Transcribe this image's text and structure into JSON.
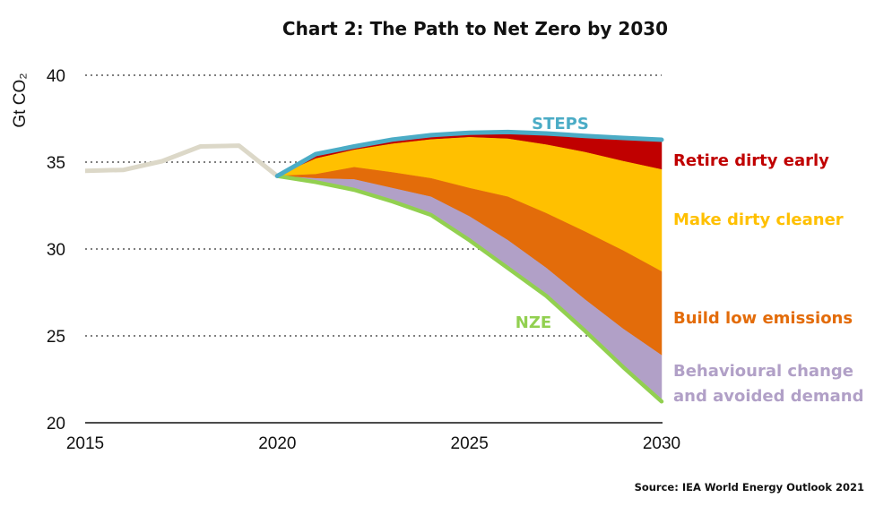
{
  "chart_data": {
    "type": "area",
    "title": "Chart 2: The Path to Net Zero by 2030",
    "xlabel": "",
    "ylabel": "Gt CO₂",
    "xlim": [
      2015,
      2030
    ],
    "ylim": [
      20,
      40
    ],
    "x_ticks": [
      "2015",
      "2020",
      "2025",
      "2030"
    ],
    "y_ticks": [
      "20",
      "25",
      "30",
      "35",
      "40"
    ],
    "grid": "dotted horizontal at 25, 30, 35, 40",
    "historical": {
      "name": "Historical",
      "color": "#dcd8c8",
      "x": [
        2015,
        2016,
        2017,
        2018,
        2019,
        2020
      ],
      "values": [
        34.5,
        34.55,
        35.05,
        35.9,
        35.95,
        34.2
      ]
    },
    "x": [
      2020,
      2021,
      2022,
      2023,
      2024,
      2025,
      2026,
      2027,
      2028,
      2029,
      2030
    ],
    "boundaries": {
      "steps": [
        34.2,
        35.46,
        35.9,
        36.3,
        36.55,
        36.69,
        36.73,
        36.65,
        36.51,
        36.39,
        36.29
      ],
      "retire_bottom": [
        34.2,
        35.2,
        35.7,
        36.05,
        36.3,
        36.43,
        36.34,
        36.0,
        35.57,
        35.05,
        34.57
      ],
      "make_cleaner_bottom": [
        34.2,
        34.3,
        34.7,
        34.4,
        34.06,
        33.5,
        33.0,
        32.05,
        31.0,
        29.9,
        28.7
      ],
      "build_low_bottom": [
        34.2,
        34.06,
        34.0,
        33.5,
        33.0,
        31.87,
        30.5,
        28.9,
        27.1,
        25.4,
        23.88
      ],
      "nze": [
        34.2,
        33.85,
        33.4,
        32.73,
        31.96,
        30.5,
        28.9,
        27.3,
        25.3,
        23.2,
        21.22
      ]
    },
    "series": [
      {
        "name": "STEPS",
        "color": "#4bacc6",
        "type": "line"
      },
      {
        "name": "Retire dirty early",
        "color": "#c00000",
        "type": "band"
      },
      {
        "name": "Make dirty cleaner",
        "color": "#ffc000",
        "type": "band"
      },
      {
        "name": "Build low emissions",
        "color": "#e36c0a",
        "type": "band"
      },
      {
        "name": "Behavioural change and avoided demand",
        "color": "#b1a0c7",
        "type": "band"
      },
      {
        "name": "NZE",
        "color": "#92d050",
        "type": "line"
      }
    ],
    "annotations": {
      "steps": "STEPS",
      "nze": "NZE",
      "retire": "Retire dirty early",
      "cleaner": "Make dirty cleaner",
      "build": "Build low emissions",
      "behaviour_line1": "Behavioural change",
      "behaviour_line2": "and avoided demand"
    },
    "source": "Source: IEA World Energy Outlook 2021"
  }
}
